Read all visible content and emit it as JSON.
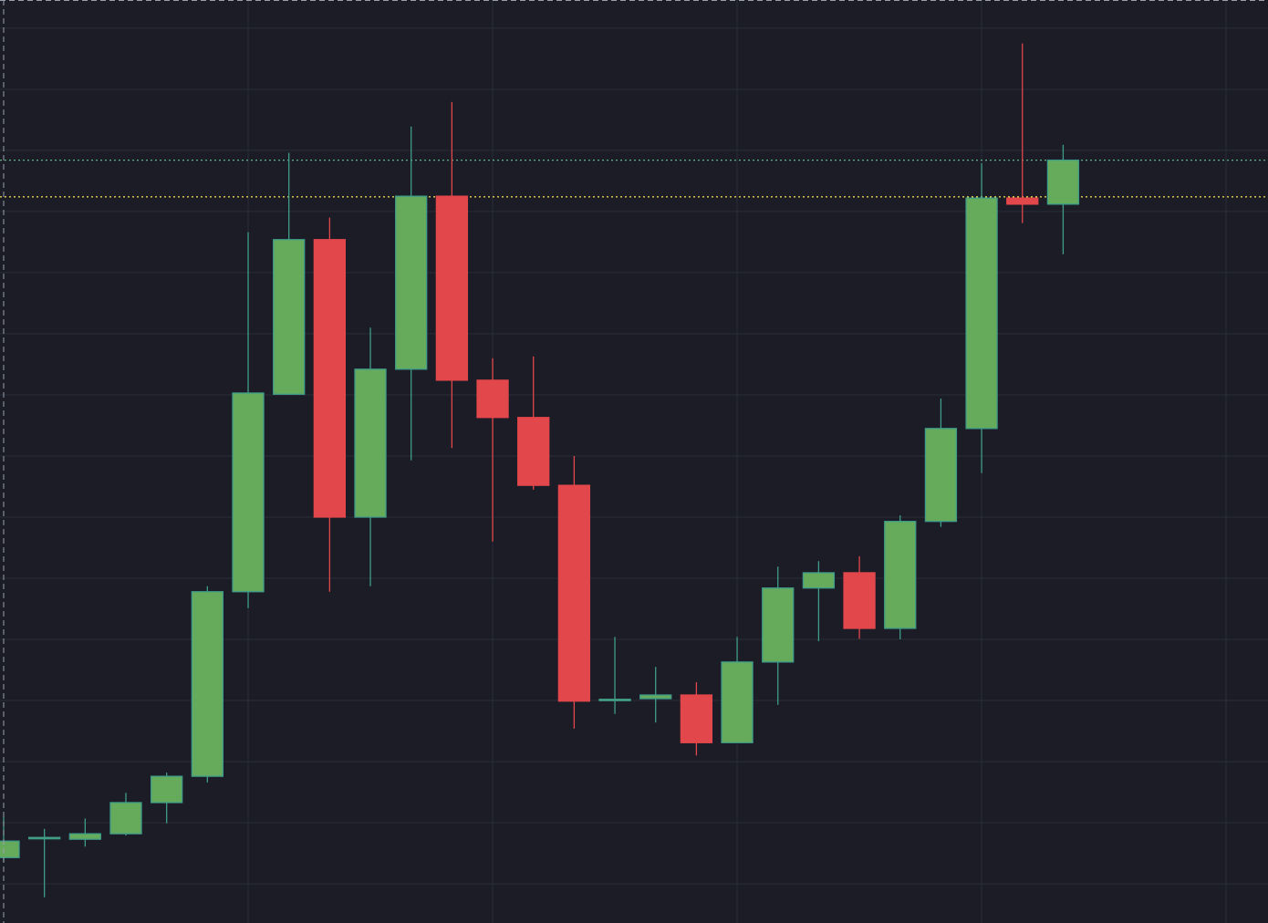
{
  "chart_data": {
    "type": "candlestick",
    "categories": [
      null,
      null,
      null,
      null,
      null,
      null,
      null,
      null,
      null,
      null,
      null,
      null,
      null,
      null,
      null,
      null,
      null,
      null,
      null,
      null,
      null,
      null,
      null,
      null,
      null,
      null,
      null
    ],
    "open": [
      0.43,
      0.75,
      0.73,
      0.82,
      1.33,
      1.76,
      4.78,
      8.01,
      10.54,
      6.0,
      8.42,
      11.25,
      8.24,
      7.63,
      6.52,
      3.01,
      3.03,
      3.09,
      2.31,
      3.63,
      4.84,
      5.09,
      4.18,
      5.93,
      7.45,
      11.22,
      11.12
    ],
    "high": [
      1.1,
      0.9,
      1.07,
      1.49,
      1.82,
      4.87,
      10.66,
      11.96,
      10.9,
      9.1,
      12.39,
      12.79,
      8.6,
      8.63,
      7.0,
      4.04,
      3.55,
      3.3,
      4.04,
      5.19,
      5.28,
      5.36,
      6.03,
      7.94,
      11.79,
      13.75,
      12.09
    ],
    "low": [
      0.36,
      -0.22,
      0.61,
      0.79,
      0.99,
      1.66,
      4.51,
      8.0,
      4.78,
      4.87,
      6.93,
      7.13,
      5.6,
      6.45,
      2.54,
      2.78,
      2.64,
      2.1,
      2.31,
      2.93,
      3.97,
      4.01,
      4.0,
      5.84,
      6.72,
      10.81,
      10.3
    ],
    "close": [
      0.7,
      0.76,
      0.82,
      1.33,
      1.76,
      4.78,
      8.03,
      10.54,
      6.0,
      8.42,
      11.25,
      8.24,
      7.63,
      6.52,
      2.99,
      3.02,
      3.09,
      2.31,
      3.63,
      4.84,
      5.09,
      4.18,
      5.93,
      7.45,
      11.22,
      11.12,
      11.84
    ],
    "up_color": "#66ab5b",
    "up_border": "#3f9c8a",
    "down_color": "#e2474b",
    "ylim": [
      -0.64,
      14.46
    ],
    "yticks": [
      0,
      1,
      2,
      3,
      4,
      5,
      6,
      7,
      8,
      9,
      10,
      11,
      12,
      13,
      14
    ],
    "grid": true,
    "reference_lines": [
      {
        "value": 11.84,
        "color": "#5fb58a"
      },
      {
        "value": 11.24,
        "color": "#e8d44d"
      }
    ]
  }
}
